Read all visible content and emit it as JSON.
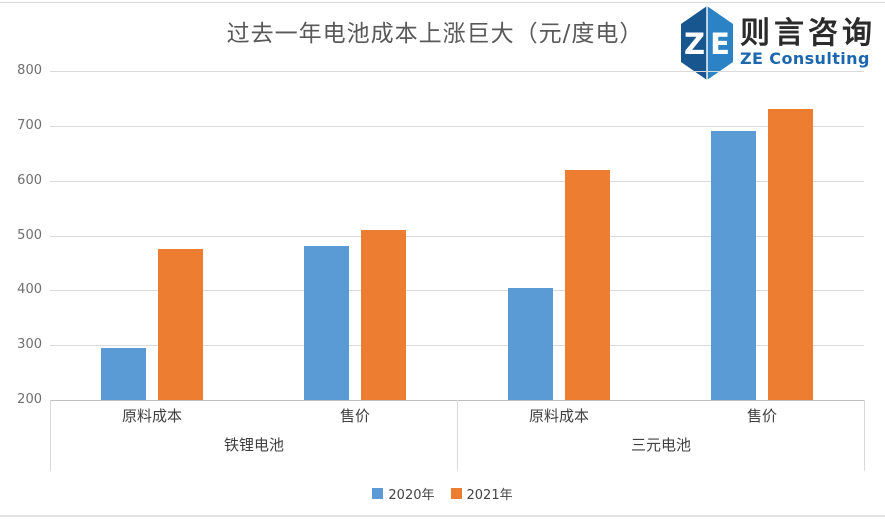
{
  "page": {
    "title": "过去一年电池成本上涨巨大（元/度电）"
  },
  "logo": {
    "icon": "ze-hexagon-icon",
    "monogram_left": "Z",
    "monogram_right": "E",
    "name_cn": "则言咨询",
    "name_en": "ZE Consulting",
    "brand_blue": "#1C67AE",
    "icon_left_color": "#18568F",
    "icon_right_color": "#2B82C4"
  },
  "chart_data": {
    "type": "bar",
    "title": "过去一年电池成本上涨巨大（元/度电）",
    "unit": "元/度电",
    "groups": [
      {
        "label": "铁锂电池",
        "categories": [
          "原料成本",
          "售价"
        ]
      },
      {
        "label": "三元电池",
        "categories": [
          "原料成本",
          "售价"
        ]
      }
    ],
    "series": [
      {
        "name": "2020年",
        "color": "#5B9BD5",
        "values": [
          295,
          480,
          405,
          690
        ]
      },
      {
        "name": "2021年",
        "color": "#ED7D31",
        "values": [
          475,
          510,
          620,
          730
        ]
      }
    ],
    "ylim": [
      200,
      800
    ],
    "ytick_step": 100,
    "yticks": [
      200,
      300,
      400,
      500,
      600,
      700,
      800
    ],
    "grid": true,
    "legend_position": "bottom",
    "colors": {
      "gridline": "#dadada",
      "axis_line": "#bfbfbf",
      "tick_text": "#6f6f6f",
      "label_text": "#404040",
      "title_text": "#595959"
    }
  }
}
